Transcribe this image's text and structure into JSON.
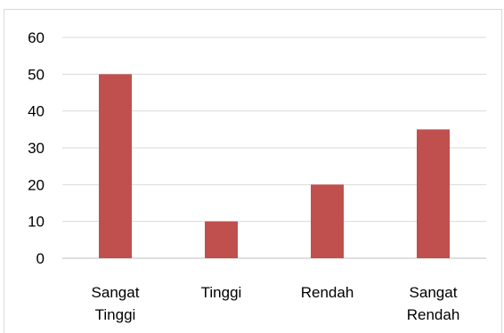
{
  "chart_data": {
    "type": "bar",
    "title": "",
    "xlabel": "",
    "ylabel": "",
    "categories": [
      [
        "Sangat",
        "Tinggi"
      ],
      [
        "Tinggi"
      ],
      [
        "Rendah"
      ],
      [
        "Sangat",
        "Rendah"
      ]
    ],
    "values": [
      50,
      10,
      20,
      35
    ],
    "ylim": [
      0,
      60
    ],
    "yticks": [
      "0",
      "10",
      "20",
      "30",
      "40",
      "50",
      "60"
    ],
    "grid": true,
    "legend": "none",
    "colors": {
      "bar": "#c0504d",
      "grid": "#d9d9d9",
      "axis": "#bfbfbf",
      "text": "#000000"
    }
  }
}
